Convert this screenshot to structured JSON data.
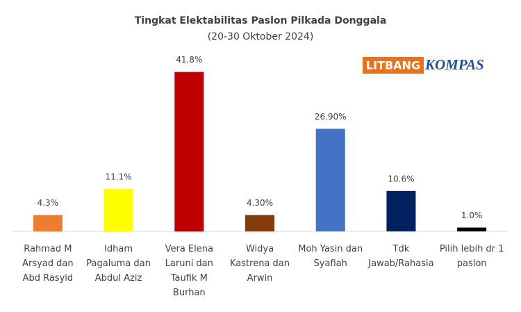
{
  "chart_data": {
    "type": "bar",
    "title": "Tingkat Elektabilitas Paslon Pilkada Donggala",
    "subtitle": "(20-30 Oktober 2024)",
    "logo": {
      "left": "LITBANG",
      "right": "KOMPAS"
    },
    "categories": [
      "Rahmad M Arsyad dan Abd Rasyid",
      "Idham Pagaluma dan Abdul Aziz",
      "Vera Elena Laruni dan Taufik M Burhan",
      "Widya Kastrena dan Arwin",
      "Moh Yasin dan Syafiah",
      "Tdk Jawab/Rahasia",
      "Pilih lebih dr 1 paslon"
    ],
    "values": [
      4.3,
      11.1,
      41.8,
      4.3,
      26.9,
      10.6,
      1.0
    ],
    "value_labels": [
      "4.3%",
      "11.1%",
      "41.8%",
      "4.30%",
      "26.90%",
      "10.6%",
      "1.0%"
    ],
    "colors": [
      "#ed7d31",
      "#ffff00",
      "#c00000",
      "#843c0c",
      "#4472c4",
      "#002060",
      "#000000"
    ],
    "ylim": [
      0,
      45
    ]
  }
}
